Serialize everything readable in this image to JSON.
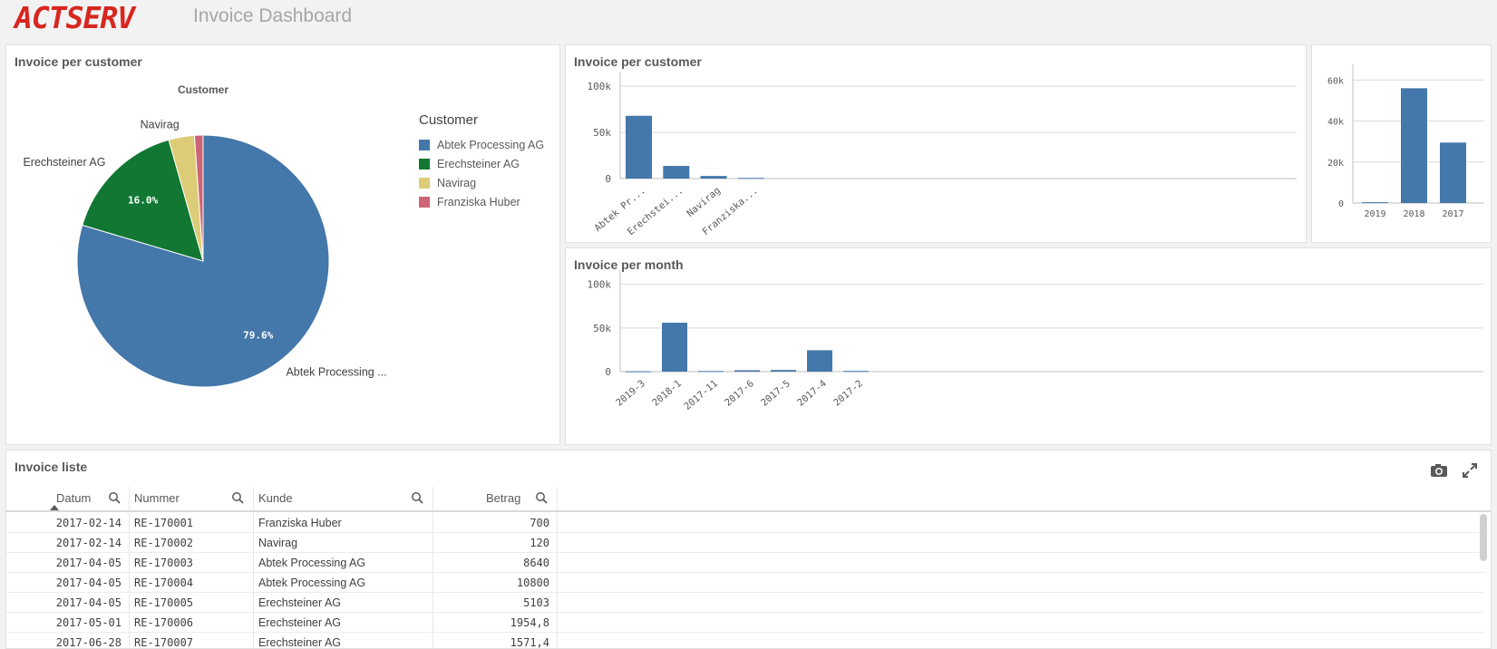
{
  "app": {
    "logo_text": "ACTSERV",
    "title": "Invoice Dashboard"
  },
  "colors": {
    "blue": "#4477aa",
    "green": "#117733",
    "yellow": "#ddcc77",
    "pink": "#cc6677",
    "logo_red": "#d7261f"
  },
  "pie_panel": {
    "title": "Invoice per customer",
    "dimension_label": "Customer",
    "legend_title": "Customer"
  },
  "bar_customer_panel": {
    "title": "Invoice per customer"
  },
  "bar_month_panel": {
    "title": "Invoice per month"
  },
  "table": {
    "title": "Invoice liste",
    "icons": [
      "camera-icon",
      "expand-icon"
    ],
    "columns": [
      "Datum",
      "Nummer",
      "Kunde",
      "Betrag"
    ],
    "sort_indicator": "ascending",
    "rows": [
      [
        "2017-02-14",
        "RE-170001",
        "Franziska Huber",
        "700"
      ],
      [
        "2017-02-14",
        "RE-170002",
        "Navirag",
        "120"
      ],
      [
        "2017-04-05",
        "RE-170003",
        "Abtek Processing AG",
        "8640"
      ],
      [
        "2017-04-05",
        "RE-170004",
        "Abtek Processing AG",
        "10800"
      ],
      [
        "2017-04-05",
        "RE-170005",
        "Erechsteiner AG",
        "5103"
      ],
      [
        "2017-05-01",
        "RE-170006",
        "Erechsteiner AG",
        "1954,8"
      ],
      [
        "2017-06-28",
        "RE-170007",
        "Erechsteiner AG",
        "1571,4"
      ]
    ]
  },
  "chart_data": [
    {
      "type": "pie",
      "title": "Invoice per customer",
      "subtitle": "Customer",
      "categories": [
        "Abtek Processing AG",
        "Erechsteiner AG",
        "Navirag",
        "Franziska Huber"
      ],
      "values": [
        79.6,
        16.0,
        3.3,
        1.1
      ],
      "slice_labels": [
        "Abtek Processing ...",
        "Erechsteiner AG",
        "Navirag",
        ""
      ],
      "value_labels": [
        "79.6%",
        "16.0%",
        "",
        ""
      ],
      "colors": [
        "#4477aa",
        "#117733",
        "#ddcc77",
        "#cc6677"
      ],
      "legend": "right"
    },
    {
      "type": "bar",
      "title": "Invoice per customer",
      "categories": [
        "Abtek Pr...",
        "Erechstei...",
        "Navirag",
        "Franziska..."
      ],
      "values": [
        68000,
        13700,
        2800,
        700
      ],
      "ylim": [
        0,
        110000
      ],
      "yticks": [
        0,
        50000,
        100000
      ],
      "ytick_labels": [
        "0",
        "50k",
        "100k"
      ],
      "grid": true,
      "color": "#4477aa"
    },
    {
      "type": "bar",
      "title": "",
      "categories": [
        "2019",
        "2018",
        "2017"
      ],
      "values": [
        400,
        56000,
        29500
      ],
      "ylim": [
        0,
        65000
      ],
      "yticks": [
        0,
        20000,
        40000,
        60000
      ],
      "ytick_labels": [
        "0",
        "20k",
        "40k",
        "60k"
      ],
      "grid": true,
      "color": "#4477aa"
    },
    {
      "type": "bar",
      "title": "Invoice per month",
      "categories": [
        "2019-3",
        "2018-1",
        "2017-11",
        "2017-6",
        "2017-5",
        "2017-4",
        "2017-2"
      ],
      "values": [
        400,
        56000,
        700,
        1600,
        1900,
        24500,
        820
      ],
      "ylim": [
        0,
        110000
      ],
      "yticks": [
        0,
        50000,
        100000
      ],
      "ytick_labels": [
        "0",
        "50k",
        "100k"
      ],
      "grid": true,
      "color": "#4477aa"
    }
  ]
}
